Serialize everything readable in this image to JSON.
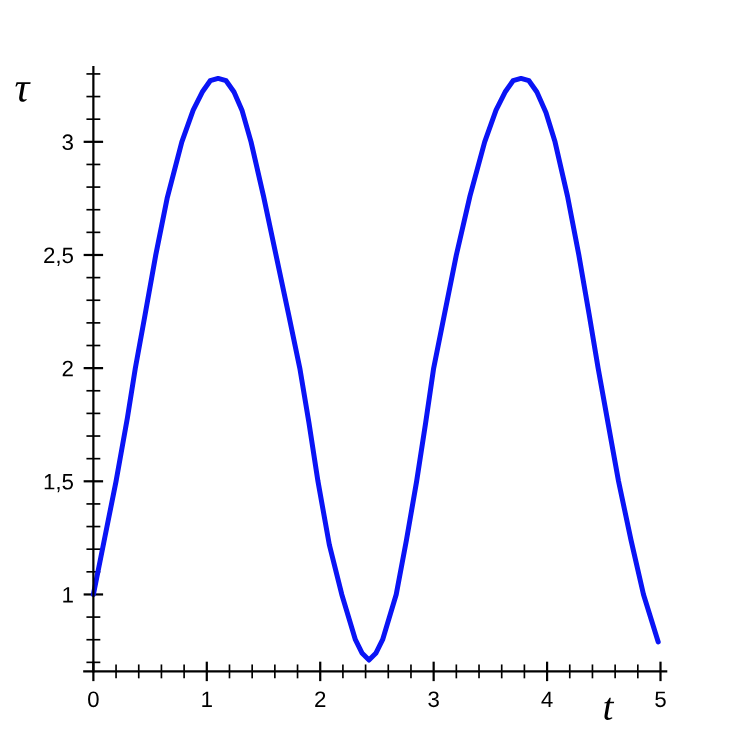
{
  "chart_data": {
    "type": "line",
    "xlabel": "t",
    "ylabel": "τ",
    "series": [
      {
        "color": "#0a14f5",
        "x": [
          0,
          0.1,
          0.2,
          0.3,
          0.37,
          0.45,
          0.55,
          0.65,
          0.78,
          0.88,
          0.96,
          1.03,
          1.1,
          1.17,
          1.24,
          1.31,
          1.39,
          1.5,
          1.61,
          1.72,
          1.82,
          1.9,
          1.98,
          2.08,
          2.19,
          2.31,
          2.37,
          2.43,
          2.49,
          2.55,
          2.67,
          2.76,
          2.85,
          2.93,
          3.0,
          3.1,
          3.2,
          3.32,
          3.45,
          3.55,
          3.63,
          3.7,
          3.77,
          3.84,
          3.91,
          3.99,
          4.07,
          4.18,
          4.28,
          4.37,
          4.45,
          4.54,
          4.63,
          4.74,
          4.85,
          4.98
        ],
        "values": [
          1.0,
          1.25,
          1.5,
          1.78,
          2.0,
          2.22,
          2.5,
          2.75,
          3.0,
          3.14,
          3.22,
          3.27,
          3.28,
          3.27,
          3.22,
          3.14,
          3.0,
          2.76,
          2.5,
          2.24,
          2.0,
          1.76,
          1.5,
          1.22,
          1.0,
          0.8,
          0.74,
          0.71,
          0.74,
          0.8,
          1.0,
          1.24,
          1.5,
          1.76,
          2.0,
          2.25,
          2.5,
          2.76,
          3.0,
          3.14,
          3.22,
          3.27,
          3.28,
          3.27,
          3.22,
          3.13,
          3.0,
          2.76,
          2.5,
          2.24,
          2.0,
          1.75,
          1.5,
          1.24,
          1.0,
          0.79
        ]
      }
    ],
    "xlim": [
      -0.08,
      5.05
    ],
    "ylim": [
      0.66,
      3.33
    ],
    "xticks": [
      0,
      1,
      2,
      3,
      4,
      5
    ],
    "yticks": [
      1,
      {
        "value": 1.5,
        "label": "1,5"
      },
      2,
      {
        "value": 2.5,
        "label": "2,5"
      },
      3
    ],
    "marker": "none",
    "line_style": "solid"
  }
}
